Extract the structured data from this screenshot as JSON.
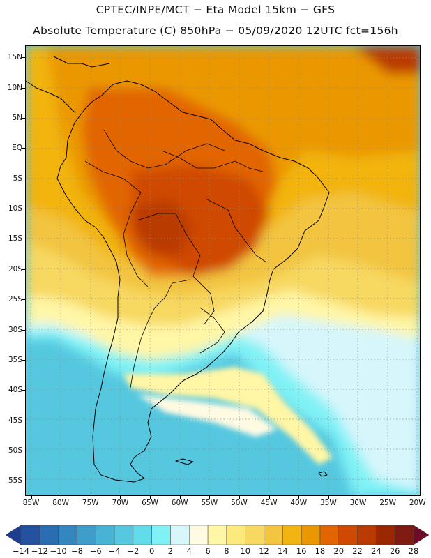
{
  "title": {
    "line1": "CPTEC/INPE/MCT −  Eta Model 15km − GFS",
    "line2": "Absolute Temperature (C) 850hPa − 05/09/2020 12UTC fct=156h"
  },
  "map": {
    "lat_labels": [
      "15N",
      "10N",
      "5N",
      "EQ",
      "5S",
      "10S",
      "15S",
      "20S",
      "25S",
      "30S",
      "35S",
      "40S",
      "45S",
      "50S",
      "55S"
    ],
    "lon_labels": [
      "85W",
      "80W",
      "75W",
      "70W",
      "65W",
      "60W",
      "55W",
      "50W",
      "45W",
      "40W",
      "35W",
      "30W",
      "25W",
      "20W"
    ],
    "lat_range": [
      17,
      -57.5
    ],
    "lon_range": [
      -86,
      -19.5
    ]
  },
  "colorbar": {
    "labels": [
      "-14",
      "-12",
      "-10",
      "-8",
      "-6",
      "-4",
      "-2",
      "0",
      "2",
      "4",
      "6",
      "8",
      "10",
      "12",
      "14",
      "16",
      "18",
      "20",
      "22",
      "24",
      "26",
      "28"
    ],
    "colors": [
      "#1d3d8f",
      "#2452a0",
      "#2a6db1",
      "#3487be",
      "#3f9dcb",
      "#49b3d6",
      "#55c8e0",
      "#62dcea",
      "#80f2f6",
      "#d6f6fb",
      "#fffbe2",
      "#fff6a6",
      "#fdea7d",
      "#f7d861",
      "#f2c43f",
      "#f2b410",
      "#eb9800",
      "#e26500",
      "#cf4a00",
      "#ba3a00",
      "#9b2700",
      "#7f1b10",
      "#6c0c2a"
    ]
  }
}
